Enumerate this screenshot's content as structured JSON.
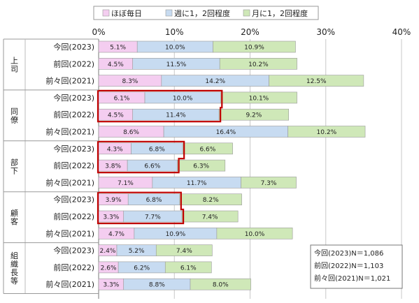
{
  "chart_data": {
    "type": "bar",
    "orientation": "horizontal",
    "stacked": true,
    "xlim": [
      0,
      40
    ],
    "x_ticks": [
      "0%",
      "10%",
      "20%",
      "30%",
      "40%"
    ],
    "legend": [
      "ほぼ毎日",
      "週に1，2回程度",
      "月に1，2回程度"
    ],
    "legend_position": "top",
    "series_colors": [
      "#f4cdf0",
      "#c7dbf1",
      "#cfe8b8"
    ],
    "groups": [
      {
        "name": "上司",
        "rows": [
          {
            "label": "今回(2023)",
            "values": [
              5.1,
              10.0,
              10.9
            ],
            "value_labels": [
              "5.1%",
              "10.0%",
              "10.9%"
            ],
            "highlight": false
          },
          {
            "label": "前回(2022)",
            "values": [
              4.5,
              11.5,
              10.2
            ],
            "value_labels": [
              "4.5%",
              "11.5%",
              "10.2%"
            ],
            "highlight": false
          },
          {
            "label": "前々回(2021)",
            "values": [
              8.3,
              14.2,
              12.5
            ],
            "value_labels": [
              "8.3%",
              "14.2%",
              "12.5%"
            ],
            "highlight": false
          }
        ]
      },
      {
        "name": "同僚",
        "rows": [
          {
            "label": "今回(2023)",
            "values": [
              6.1,
              10.0,
              10.1
            ],
            "value_labels": [
              "6.1%",
              "10.0%",
              "10.1%"
            ],
            "highlight": true
          },
          {
            "label": "前回(2022)",
            "values": [
              4.5,
              11.4,
              9.2
            ],
            "value_labels": [
              "4.5%",
              "11.4%",
              "9.2%"
            ],
            "highlight": true
          },
          {
            "label": "前々回(2021)",
            "values": [
              8.6,
              16.4,
              10.2
            ],
            "value_labels": [
              "8.6%",
              "16.4%",
              "10.2%"
            ],
            "highlight": false
          }
        ]
      },
      {
        "name": "部下",
        "rows": [
          {
            "label": "今回(2023)",
            "values": [
              4.3,
              6.8,
              6.6
            ],
            "value_labels": [
              "4.3%",
              "6.8%",
              "6.6%"
            ],
            "highlight": true
          },
          {
            "label": "前回(2022)",
            "values": [
              3.8,
              6.6,
              6.3
            ],
            "value_labels": [
              "3.8%",
              "6.6%",
              "6.3%"
            ],
            "highlight": true
          },
          {
            "label": "前々回(2021)",
            "values": [
              7.1,
              11.7,
              7.3
            ],
            "value_labels": [
              "7.1%",
              "11.7%",
              "7.3%"
            ],
            "highlight": false
          }
        ]
      },
      {
        "name": "顧客",
        "rows": [
          {
            "label": "今回(2023)",
            "values": [
              3.9,
              6.8,
              8.2
            ],
            "value_labels": [
              "3.9%",
              "6.8%",
              "8.2%"
            ],
            "highlight": true
          },
          {
            "label": "前回(2022)",
            "values": [
              3.3,
              7.7,
              7.4
            ],
            "value_labels": [
              "3.3%",
              "7.7%",
              "7.4%"
            ],
            "highlight": true
          },
          {
            "label": "前々回(2021)",
            "values": [
              4.7,
              10.9,
              10.0
            ],
            "value_labels": [
              "4.7%",
              "10.9%",
              "10.0%"
            ],
            "highlight": false
          }
        ]
      },
      {
        "name": "組織長等",
        "rows": [
          {
            "label": "今回(2023)",
            "values": [
              2.4,
              5.2,
              7.4
            ],
            "value_labels": [
              "2.4%",
              "5.2%",
              "7.4%"
            ],
            "highlight": false
          },
          {
            "label": "前回(2022)",
            "values": [
              2.6,
              6.2,
              6.1
            ],
            "value_labels": [
              "2.6%",
              "6.2%",
              "6.1%"
            ],
            "highlight": false
          },
          {
            "label": "前々回(2021)",
            "values": [
              3.3,
              8.8,
              8.0
            ],
            "value_labels": [
              "3.3%",
              "8.8%",
              "8.0%"
            ],
            "highlight": false
          }
        ]
      }
    ],
    "sample_note": [
      "今回(2023)N＝1,086",
      "前回(2022)N＝1,103",
      "前々回(2021)N＝1,021"
    ],
    "grid": true
  }
}
